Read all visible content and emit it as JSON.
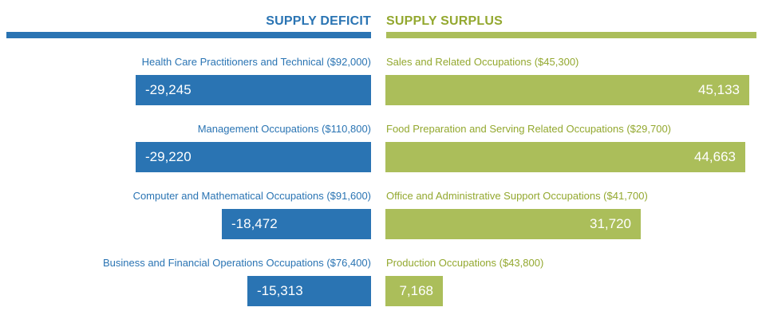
{
  "colors": {
    "deficit": "#2a74b3",
    "surplus": "#abbe5a",
    "deficit_text": "#2a74b3",
    "surplus_text": "#93a82f"
  },
  "chart_data": {
    "type": "bar",
    "orientation": "horizontal-diverging",
    "headers": {
      "deficit": "SUPPLY DEFICIT",
      "surplus": "SUPPLY SURPLUS"
    },
    "deficit": [
      {
        "label": "Health Care Practitioners and Technical ($92,000)",
        "value": -29245,
        "display": "-29,245"
      },
      {
        "label": "Management Occupations ($110,800)",
        "value": -29220,
        "display": "-29,220"
      },
      {
        "label": "Computer and Mathematical Occupations ($91,600)",
        "value": -18472,
        "display": "-18,472"
      },
      {
        "label": "Business and Financial Operations Occupations ($76,400)",
        "value": -15313,
        "display": "-15,313"
      }
    ],
    "surplus": [
      {
        "label": "Sales and Related Occupations ($45,300)",
        "value": 45133,
        "display": "45,133"
      },
      {
        "label": "Food Preparation and Serving Related Occupations ($29,700)",
        "value": 44663,
        "display": "44,663"
      },
      {
        "label": "Office and Administrative Support Occupations ($41,700)",
        "value": 31720,
        "display": "31,720"
      },
      {
        "label": "Production Occupations ($43,800)",
        "value": 7168,
        "display": "7,168"
      }
    ]
  }
}
